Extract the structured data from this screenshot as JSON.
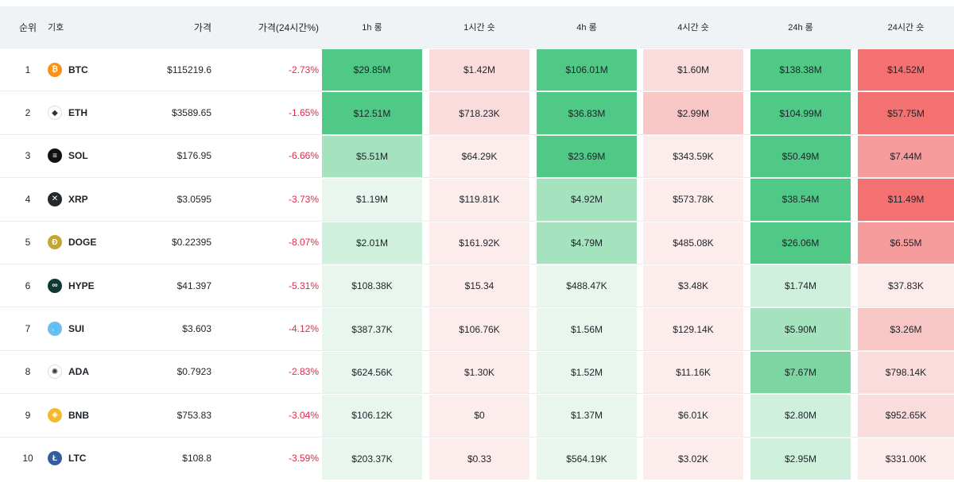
{
  "header": {
    "rank": "순위",
    "symbol": "기호",
    "price": "가격",
    "change": "가격(24시간%)",
    "long_1h": "1h 롱",
    "short_1h": "1시간 숏",
    "long_4h": "4h 롱",
    "short_4h": "4시간 숏",
    "long_24h": "24h 롱",
    "short_24h": "24시간 숏"
  },
  "colors": {
    "long_levels": [
      "#e8f6ee",
      "#d0f0de",
      "#a5e2be",
      "#7dd6a2",
      "#4fc985"
    ],
    "short_levels": [
      "#fdecec",
      "#fbdcdc",
      "#f9c6c6",
      "#f79c9c",
      "#f47171"
    ],
    "negative_text": "#e0294a",
    "header_bg": "#f0f3f6"
  },
  "rows": [
    {
      "rank": "1",
      "symbol": "BTC",
      "icon": "bitcoin-icon",
      "icon_color": "#f7931a",
      "icon_glyph": "₿",
      "price": "$115219.6",
      "change": "-2.73%",
      "l1": "$29.85M",
      "l1v": 4,
      "s1": "$1.42M",
      "s1v": 1,
      "l4": "$106.01M",
      "l4v": 4,
      "s4": "$1.60M",
      "s4v": 1,
      "l24": "$138.38M",
      "l24v": 4,
      "s24": "$14.52M",
      "s24v": 4
    },
    {
      "rank": "2",
      "symbol": "ETH",
      "icon": "ethereum-icon",
      "icon_color": "#ffffff",
      "icon_glyph": "◆",
      "price": "$3589.65",
      "change": "-1.65%",
      "l1": "$12.51M",
      "l1v": 4,
      "s1": "$718.23K",
      "s1v": 1,
      "l4": "$36.83M",
      "l4v": 4,
      "s4": "$2.99M",
      "s4v": 2,
      "l24": "$104.99M",
      "l24v": 4,
      "s24": "$57.75M",
      "s24v": 4
    },
    {
      "rank": "3",
      "symbol": "SOL",
      "icon": "solana-icon",
      "icon_color": "#111111",
      "icon_glyph": "≡",
      "price": "$176.95",
      "change": "-6.66%",
      "l1": "$5.51M",
      "l1v": 2,
      "s1": "$64.29K",
      "s1v": 0,
      "l4": "$23.69M",
      "l4v": 4,
      "s4": "$343.59K",
      "s4v": 0,
      "l24": "$50.49M",
      "l24v": 4,
      "s24": "$7.44M",
      "s24v": 3
    },
    {
      "rank": "4",
      "symbol": "XRP",
      "icon": "xrp-icon",
      "icon_color": "#23292f",
      "icon_glyph": "✕",
      "price": "$3.0595",
      "change": "-3.73%",
      "l1": "$1.19M",
      "l1v": 0,
      "s1": "$119.81K",
      "s1v": 0,
      "l4": "$4.92M",
      "l4v": 2,
      "s4": "$573.78K",
      "s4v": 0,
      "l24": "$38.54M",
      "l24v": 4,
      "s24": "$11.49M",
      "s24v": 4
    },
    {
      "rank": "5",
      "symbol": "DOGE",
      "icon": "dogecoin-icon",
      "icon_color": "#c3a634",
      "icon_glyph": "Ð",
      "price": "$0.22395",
      "change": "-8.07%",
      "l1": "$2.01M",
      "l1v": 1,
      "s1": "$161.92K",
      "s1v": 0,
      "l4": "$4.79M",
      "l4v": 2,
      "s4": "$485.08K",
      "s4v": 0,
      "l24": "$26.06M",
      "l24v": 4,
      "s24": "$6.55M",
      "s24v": 3
    },
    {
      "rank": "6",
      "symbol": "HYPE",
      "icon": "hyperliquid-icon",
      "icon_color": "#0f3933",
      "icon_glyph": "∞",
      "price": "$41.397",
      "change": "-5.31%",
      "l1": "$108.38K",
      "l1v": 0,
      "s1": "$15.34",
      "s1v": 0,
      "l4": "$488.47K",
      "l4v": 0,
      "s4": "$3.48K",
      "s4v": 0,
      "l24": "$1.74M",
      "l24v": 1,
      "s24": "$37.83K",
      "s24v": 0
    },
    {
      "rank": "7",
      "symbol": "SUI",
      "icon": "sui-icon",
      "icon_color": "#6fbcf0",
      "icon_glyph": "💧",
      "price": "$3.603",
      "change": "-4.12%",
      "l1": "$387.37K",
      "l1v": 0,
      "s1": "$106.76K",
      "s1v": 0,
      "l4": "$1.56M",
      "l4v": 0,
      "s4": "$129.14K",
      "s4v": 0,
      "l24": "$5.90M",
      "l24v": 2,
      "s24": "$3.26M",
      "s24v": 2
    },
    {
      "rank": "8",
      "symbol": "ADA",
      "icon": "cardano-icon",
      "icon_color": "#ffffff",
      "icon_glyph": "✺",
      "price": "$0.7923",
      "change": "-2.83%",
      "l1": "$624.56K",
      "l1v": 0,
      "s1": "$1.30K",
      "s1v": 0,
      "l4": "$1.52M",
      "l4v": 0,
      "s4": "$11.16K",
      "s4v": 0,
      "l24": "$7.67M",
      "l24v": 3,
      "s24": "$798.14K",
      "s24v": 1
    },
    {
      "rank": "9",
      "symbol": "BNB",
      "icon": "bnb-icon",
      "icon_color": "#f3ba2f",
      "icon_glyph": "◈",
      "price": "$753.83",
      "change": "-3.04%",
      "l1": "$106.12K",
      "l1v": 0,
      "s1": "$0",
      "s1v": 0,
      "l4": "$1.37M",
      "l4v": 0,
      "s4": "$6.01K",
      "s4v": 0,
      "l24": "$2.80M",
      "l24v": 1,
      "s24": "$952.65K",
      "s24v": 1
    },
    {
      "rank": "10",
      "symbol": "LTC",
      "icon": "litecoin-icon",
      "icon_color": "#345d9d",
      "icon_glyph": "Ł",
      "price": "$108.8",
      "change": "-3.59%",
      "l1": "$203.37K",
      "l1v": 0,
      "s1": "$0.33",
      "s1v": 0,
      "l4": "$564.19K",
      "l4v": 0,
      "s4": "$3.02K",
      "s4v": 0,
      "l24": "$2.95M",
      "l24v": 1,
      "s24": "$331.00K",
      "s24v": 0
    }
  ]
}
